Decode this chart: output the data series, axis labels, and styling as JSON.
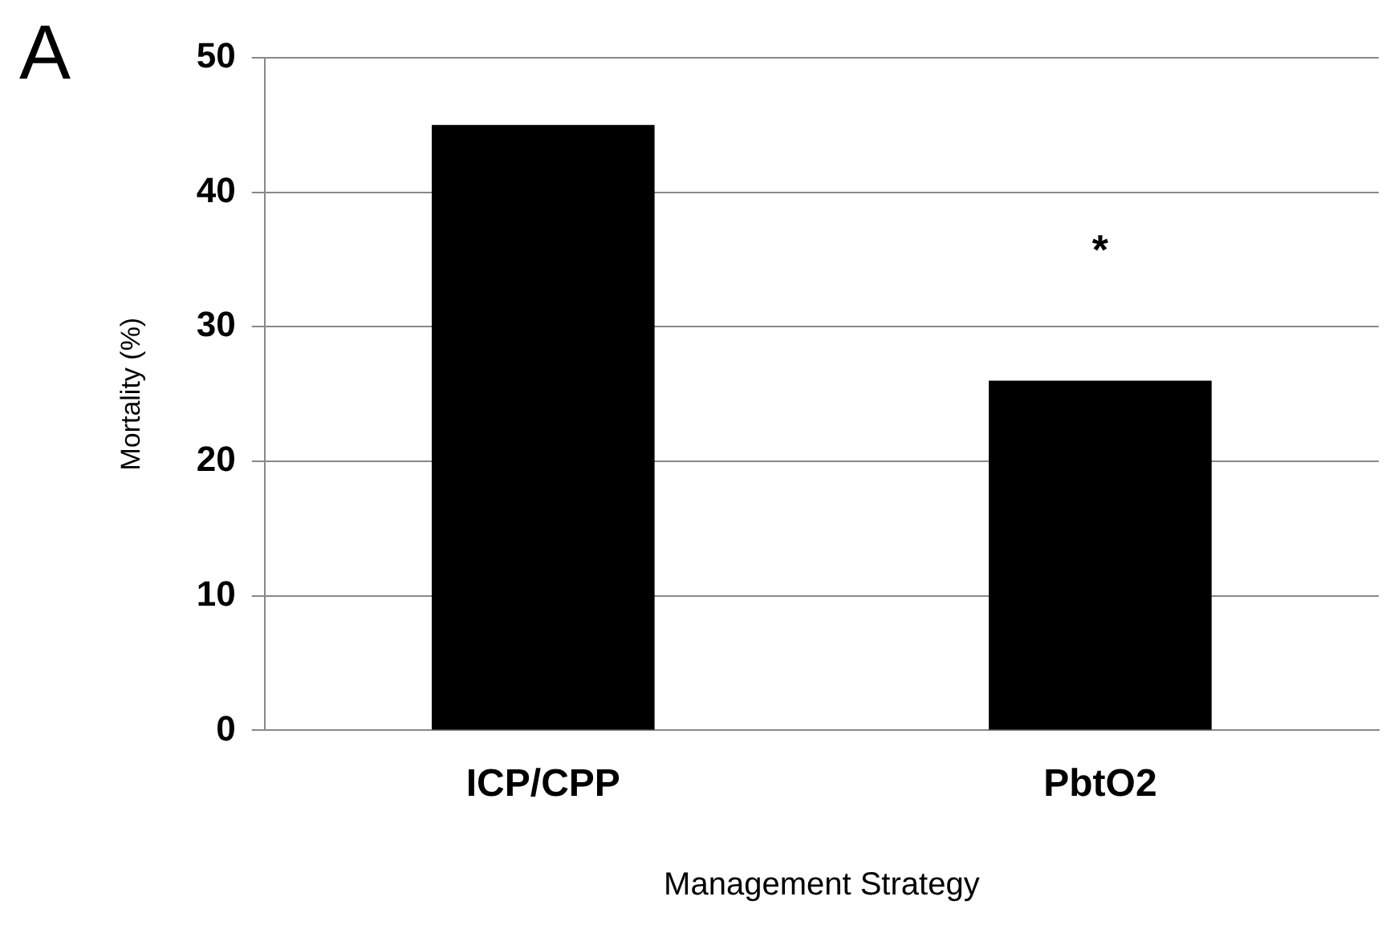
{
  "chart_data": {
    "type": "bar",
    "xlabel": "Management Strategy",
    "ylabel": "Mortality (%)",
    "categories": [
      "ICP/CPP",
      "PbtO2"
    ],
    "values": [
      45,
      26
    ],
    "color": "#000000",
    "ylim": [
      0,
      50
    ],
    "yticks": [
      0,
      10,
      20,
      30,
      40,
      50
    ],
    "grid": "y",
    "legend": false,
    "annotations": [
      "A",
      "*"
    ]
  }
}
